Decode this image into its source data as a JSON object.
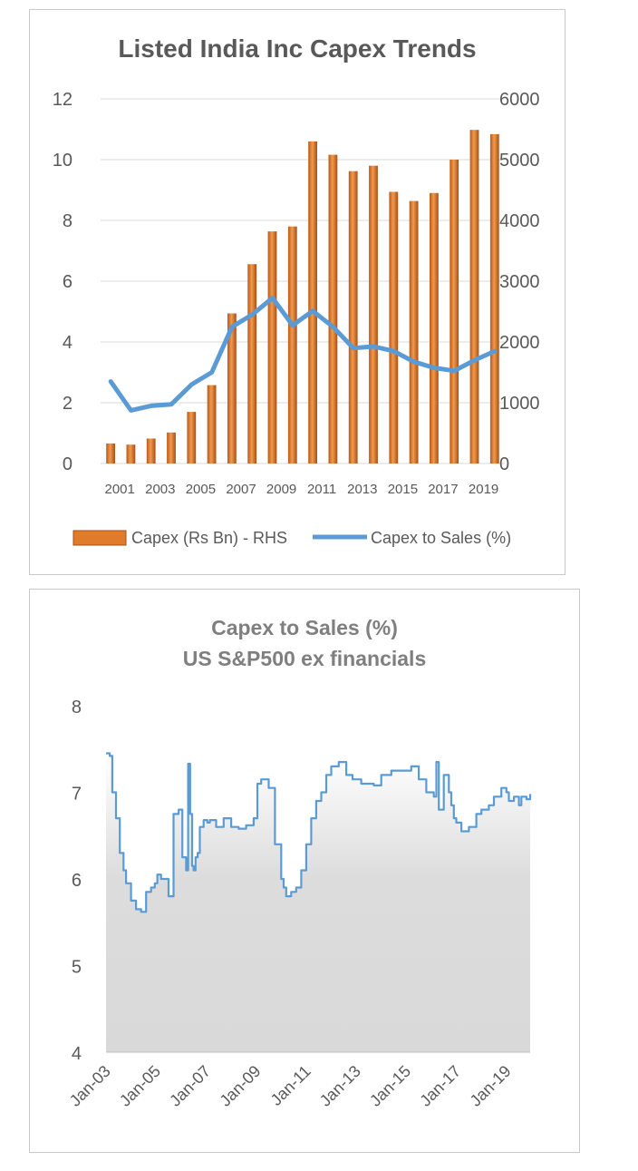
{
  "chart_data": [
    {
      "type": "bar",
      "title": "Listed India Inc Capex Trends",
      "xlabel": "",
      "ylabel_left": "",
      "ylabel_right": "",
      "categories": [
        "2001",
        "2002",
        "2003",
        "2004",
        "2005",
        "2006",
        "2007",
        "2008",
        "2009",
        "2010",
        "2011",
        "2012",
        "2013",
        "2014",
        "2015",
        "2016",
        "2017",
        "2018",
        "2019",
        "2020"
      ],
      "x_tick_labels": [
        "2001",
        "2003",
        "2005",
        "2007",
        "2009",
        "2011",
        "2013",
        "2015",
        "2017",
        "2019"
      ],
      "series": [
        {
          "name": "Capex (Rs Bn) - RHS",
          "axis": "right",
          "type": "bar",
          "color": "#e07b2a",
          "values": [
            330,
            310,
            410,
            510,
            850,
            1290,
            2470,
            3280,
            3820,
            3900,
            5300,
            5080,
            4810,
            4900,
            4470,
            4320,
            4450,
            5000,
            5490,
            5420
          ]
        },
        {
          "name": "Capex to Sales (%)",
          "axis": "left",
          "type": "line",
          "color": "#5b9bd5",
          "values": [
            2.7,
            1.75,
            1.9,
            1.95,
            2.6,
            3.0,
            4.5,
            4.9,
            5.45,
            4.55,
            5.02,
            4.5,
            3.8,
            3.85,
            3.7,
            3.35,
            3.15,
            3.05,
            3.4,
            3.7
          ]
        }
      ],
      "ylim_left": [
        0,
        12
      ],
      "yticks_left": [
        "0",
        "2",
        "4",
        "6",
        "8",
        "10",
        "12"
      ],
      "ylim_right": [
        0,
        6000
      ],
      "yticks_right": [
        "0",
        "1000",
        "2000",
        "3000",
        "4000",
        "5000",
        "6000"
      ],
      "legend": [
        "Capex (Rs Bn) - RHS",
        "Capex to Sales (%)"
      ],
      "legend_position": "bottom"
    },
    {
      "type": "area",
      "title": [
        "Capex to Sales (%)",
        "US S&P500 ex financials"
      ],
      "xlabel": "",
      "ylabel": "",
      "x_tick_labels": [
        "Jan-03",
        "Jan-05",
        "Jan-07",
        "Jan-09",
        "Jan-11",
        "Jan-13",
        "Jan-15",
        "Jan-17",
        "Jan-19"
      ],
      "xlim": [
        2003.0,
        2019.95
      ],
      "ylim": [
        4,
        8
      ],
      "yticks": [
        "4",
        "5",
        "6",
        "7",
        "8"
      ],
      "line_color": "#5b9bd5",
      "fill_color": "#d9d9d9",
      "series": [
        {
          "name": "Capex to Sales (%)",
          "x": [
            2003.0,
            2003.15,
            2003.25,
            2003.4,
            2003.55,
            2003.7,
            2003.8,
            2004.0,
            2004.2,
            2004.4,
            2004.6,
            2004.8,
            2004.95,
            2005.05,
            2005.2,
            2005.35,
            2005.5,
            2005.7,
            2005.9,
            2006.05,
            2006.2,
            2006.28,
            2006.36,
            2006.44,
            2006.5,
            2006.58,
            2006.66,
            2006.75,
            2006.9,
            2007.05,
            2007.15,
            2007.4,
            2007.7,
            2008.0,
            2008.3,
            2008.6,
            2008.9,
            2009.05,
            2009.2,
            2009.5,
            2009.75,
            2010.0,
            2010.1,
            2010.2,
            2010.4,
            2010.6,
            2010.8,
            2011.0,
            2011.2,
            2011.4,
            2011.6,
            2011.8,
            2012.0,
            2012.3,
            2012.6,
            2012.85,
            2013.0,
            2013.2,
            2013.4,
            2013.7,
            2014.0,
            2014.4,
            2014.7,
            2015.0,
            2015.2,
            2015.5,
            2015.8,
            2016.1,
            2016.2,
            2016.3,
            2016.5,
            2016.7,
            2016.8,
            2016.9,
            2017.0,
            2017.2,
            2017.5,
            2017.8,
            2018.0,
            2018.3,
            2018.5,
            2018.8,
            2019.0,
            2019.1,
            2019.3,
            2019.5,
            2019.6,
            2019.8,
            2019.95
          ],
          "y": [
            7.45,
            7.42,
            7.0,
            6.7,
            6.3,
            6.1,
            5.95,
            5.75,
            5.65,
            5.62,
            5.85,
            5.9,
            5.95,
            6.05,
            6.0,
            6.0,
            5.8,
            6.75,
            6.8,
            6.25,
            6.1,
            7.33,
            6.75,
            6.15,
            6.1,
            6.25,
            6.3,
            6.6,
            6.68,
            6.65,
            6.68,
            6.6,
            6.7,
            6.6,
            6.58,
            6.62,
            6.7,
            7.1,
            7.15,
            7.05,
            6.4,
            6.0,
            5.9,
            5.8,
            5.85,
            5.9,
            6.1,
            6.4,
            6.7,
            6.9,
            7.0,
            7.2,
            7.3,
            7.35,
            7.2,
            7.15,
            7.15,
            7.1,
            7.1,
            7.08,
            7.2,
            7.25,
            7.25,
            7.25,
            7.3,
            7.15,
            7.0,
            6.95,
            7.35,
            6.8,
            7.2,
            7.0,
            6.85,
            6.7,
            6.65,
            6.55,
            6.6,
            6.75,
            6.8,
            6.85,
            6.95,
            7.05,
            7.0,
            6.9,
            6.95,
            6.85,
            6.95,
            6.92,
            6.98
          ]
        }
      ]
    }
  ]
}
